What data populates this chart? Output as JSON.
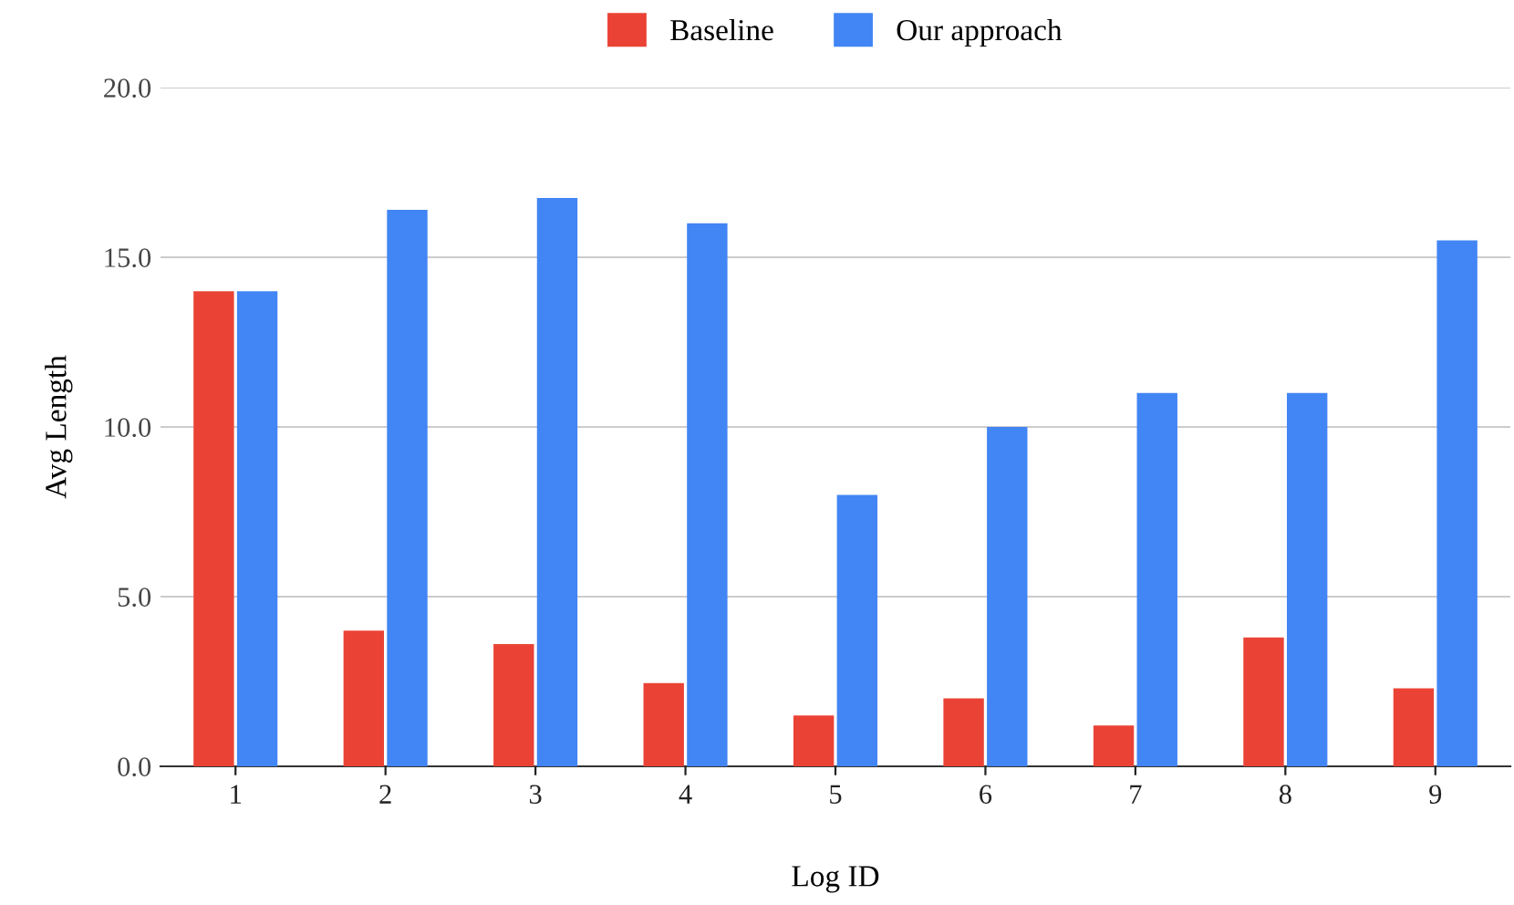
{
  "chart_data": {
    "type": "bar",
    "xlabel": "Log ID",
    "ylabel": "Avg Length",
    "categories": [
      "1",
      "2",
      "3",
      "4",
      "5",
      "6",
      "7",
      "8",
      "9"
    ],
    "series": [
      {
        "name": "Baseline",
        "color": "#ea4335",
        "values": [
          14.0,
          4.0,
          3.6,
          2.45,
          1.5,
          2.0,
          1.2,
          3.8,
          2.3
        ]
      },
      {
        "name": "Our approach",
        "color": "#4285f4",
        "values": [
          14.0,
          16.4,
          16.75,
          16.0,
          8.0,
          10.0,
          11.0,
          11.0,
          15.5
        ]
      }
    ],
    "ylim": [
      0,
      20
    ],
    "yticks": [
      {
        "value": 0,
        "label": "0.0"
      },
      {
        "value": 5,
        "label": "5.0"
      },
      {
        "value": 10,
        "label": "10.0"
      },
      {
        "value": 15,
        "label": "15.0"
      },
      {
        "value": 20,
        "label": "20.0"
      }
    ],
    "grid": "y",
    "legend": "top"
  }
}
